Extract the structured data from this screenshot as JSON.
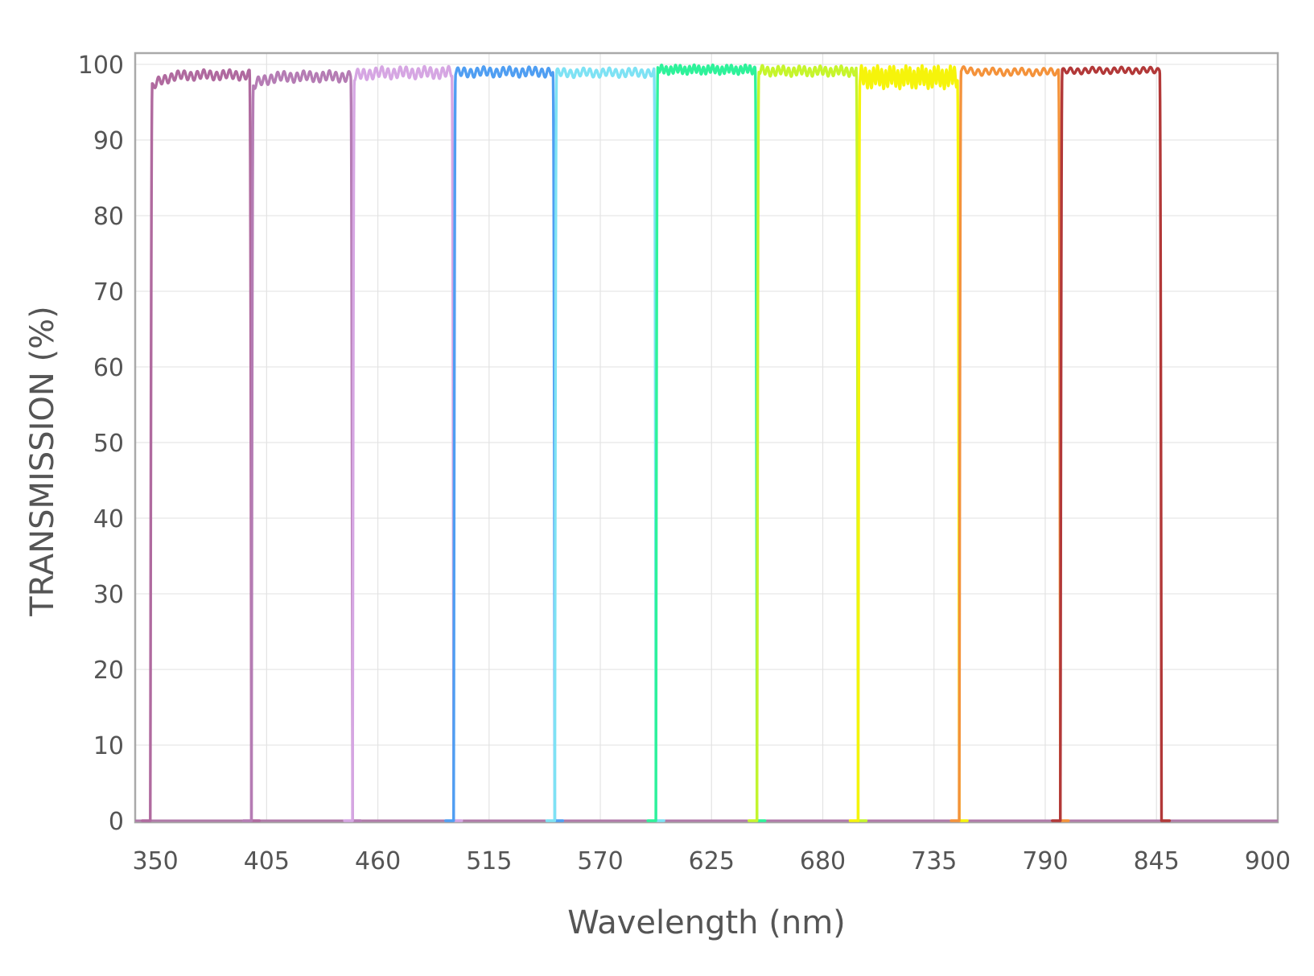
{
  "chart_data": {
    "type": "line",
    "title": "",
    "xlabel": "Wavelength (nm)",
    "ylabel": "TRANSMISSION (%)",
    "xlim": [
      340,
      905
    ],
    "ylim": [
      0,
      100
    ],
    "x_ticks": [
      350,
      405,
      460,
      515,
      570,
      625,
      680,
      735,
      790,
      845,
      900
    ],
    "y_ticks": [
      0,
      10,
      20,
      30,
      40,
      50,
      60,
      70,
      80,
      90,
      100
    ],
    "grid": true,
    "legend": "none",
    "series": [
      {
        "color": "#b06a9f",
        "band_nm": [
          347.5,
          397.5
        ],
        "plateau_start": 96.5,
        "plateau_end": 98.6,
        "ripple": 0.55,
        "ripple_period_nm": 3.2
      },
      {
        "color": "#b57cb4",
        "band_nm": [
          397.5,
          447.5
        ],
        "plateau_start": 96.8,
        "plateau_end": 98.4,
        "ripple": 0.6,
        "ripple_period_nm": 3.2
      },
      {
        "color": "#d6a6e3",
        "band_nm": [
          447.5,
          497.5
        ],
        "plateau_start": 98.3,
        "plateau_end": 98.9,
        "ripple": 0.65,
        "ripple_period_nm": 3.0
      },
      {
        "color": "#4f9ef2",
        "band_nm": [
          497.5,
          547.5
        ],
        "plateau_start": 98.8,
        "plateau_end": 99.0,
        "ripple": 0.55,
        "ripple_period_nm": 3.2
      },
      {
        "color": "#7ee2f4",
        "band_nm": [
          547.5,
          597.5
        ],
        "plateau_start": 98.8,
        "plateau_end": 98.9,
        "ripple": 0.5,
        "ripple_period_nm": 3.2
      },
      {
        "color": "#2ef29a",
        "band_nm": [
          597.5,
          647.5
        ],
        "plateau_start": 99.3,
        "plateau_end": 99.3,
        "ripple": 0.5,
        "ripple_period_nm": 2.3
      },
      {
        "color": "#c6f52c",
        "band_nm": [
          647.5,
          697.5
        ],
        "plateau_start": 99.2,
        "plateau_end": 99.1,
        "ripple": 0.55,
        "ripple_period_nm": 2.6
      },
      {
        "color": "#f6f40a",
        "band_nm": [
          697.5,
          747.5
        ],
        "plateau_start": 98.3,
        "plateau_end": 98.3,
        "ripple": 1.2,
        "ripple_period_nm": 2.0
      },
      {
        "color": "#f4923a",
        "band_nm": [
          747.5,
          797.5
        ],
        "plateau_start": 99.3,
        "plateau_end": 99.0,
        "ripple": 0.4,
        "ripple_period_nm": 3.6
      },
      {
        "color": "#b23838",
        "band_nm": [
          797.5,
          847.5
        ],
        "plateau_start": 99.0,
        "plateau_end": 99.2,
        "ripple": 0.35,
        "ripple_period_nm": 3.6
      }
    ]
  }
}
